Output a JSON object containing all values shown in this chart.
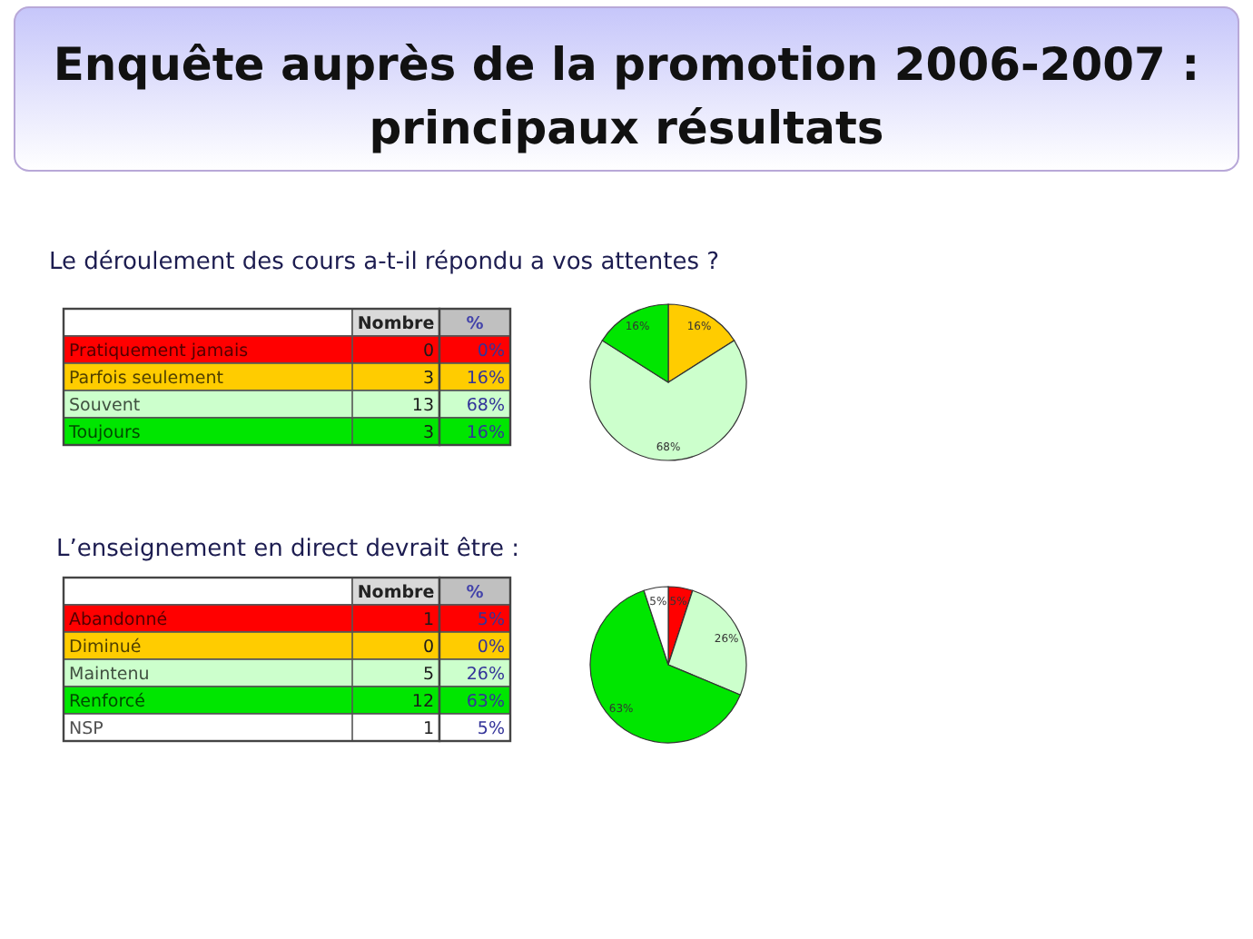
{
  "chart_data": [
    {
      "type": "other",
      "title": "Enquête auprès de la promotion 2006-2007 : principaux résultats",
      "subtitle": "Le déroulement des cours a-t-il répondu a vos attentes ?",
      "categories": [
        "Pratiquement jamais",
        "Parfois seulement",
        "Souvent",
        "Toujours"
      ],
      "series": [
        {
          "name": "Nombre",
          "colors": [
            "#ff0000",
            "#ffcc00",
            "#ccffcc",
            "#00e600"
          ],
          "values": [
            0,
            3,
            13,
            3
          ]
        }
      ],
      "data_labels": true
    },
    {
      "type": "pie",
      "categories": [
        null,
        null,
        null,
        null
      ],
      "values": [
        0,
        16,
        68,
        16
      ],
      "colors": [
        "#ff0000",
        "#ffcc00",
        "#ccffcc",
        "#00e600"
      ],
      "value_labels": [
        "0%",
        "16%",
        "68%",
        "16%"
      ],
      "annotations": [
        "%"
      ]
    },
    {
      "type": "other",
      "title": "L’enseignement en direct devrait être :",
      "categories": [
        "Abandonné",
        "Diminué",
        "Maintenu",
        "Renforcé",
        "NSP"
      ],
      "series": [
        {
          "name": "Nombre",
          "colors": [
            "#ff0000",
            "#ffcc00",
            "#ccffcc",
            "#00e600",
            "#ffffff"
          ],
          "values": [
            1,
            0,
            5,
            12,
            1
          ]
        }
      ],
      "data_labels": true
    },
    {
      "type": "pie",
      "categories": [
        null,
        null,
        null,
        null,
        null
      ],
      "values": [
        5,
        0,
        26,
        63,
        5
      ],
      "colors": [
        "#ff0000",
        "#ffcc00",
        "#ccffcc",
        "#00e600",
        "#ffffff"
      ],
      "value_labels": [
        "5%",
        "0%",
        "26%",
        "63%",
        "5%"
      ],
      "annotations": [
        "%"
      ]
    }
  ]
}
